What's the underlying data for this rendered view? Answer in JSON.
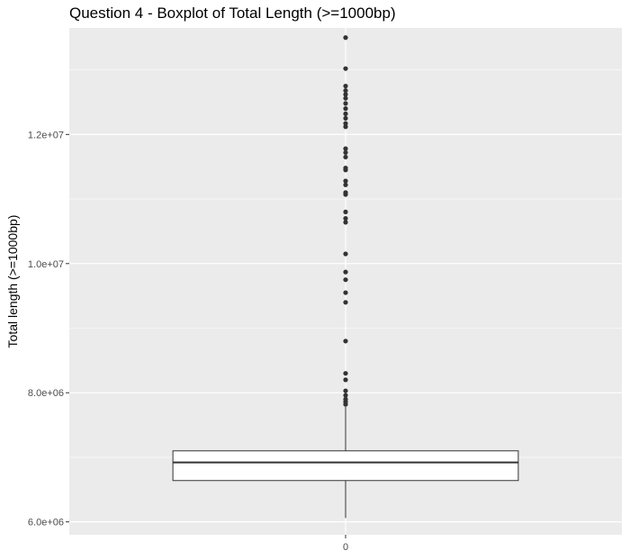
{
  "chart_data": {
    "type": "boxplot",
    "title": "Question 4 - Boxplot of Total Length (>=1000bp)",
    "xlabel": "",
    "ylabel": "Total length (>=1000bp)",
    "categories": [
      "0"
    ],
    "ylim": [
      5800000,
      13650000
    ],
    "y_ticks": [
      6000000,
      8000000,
      10000000,
      12000000
    ],
    "y_tick_labels": [
      "6.0e+06",
      "8.0e+06",
      "1.0e+07",
      "1.2e+07"
    ],
    "grid": true,
    "box": {
      "category": "0",
      "whisker_low": 6060000,
      "q1": 6640000,
      "median": 6920000,
      "q3": 7100000,
      "whisker_high": 7780000
    },
    "outliers": [
      7820000,
      7860000,
      7900000,
      7960000,
      8030000,
      8200000,
      8300000,
      8800000,
      9400000,
      9550000,
      9750000,
      9870000,
      10150000,
      10640000,
      10700000,
      10800000,
      11070000,
      11100000,
      11220000,
      11280000,
      11450000,
      11480000,
      11650000,
      11720000,
      11780000,
      12120000,
      12170000,
      12250000,
      12320000,
      12400000,
      12480000,
      12560000,
      12620000,
      12680000,
      12750000,
      13020000,
      13500000
    ],
    "colors": {
      "panel": "#ebebeb",
      "grid_major": "#ffffff",
      "box_fill": "#ffffff",
      "box_line": "#333333",
      "outlier": "#333333"
    }
  }
}
